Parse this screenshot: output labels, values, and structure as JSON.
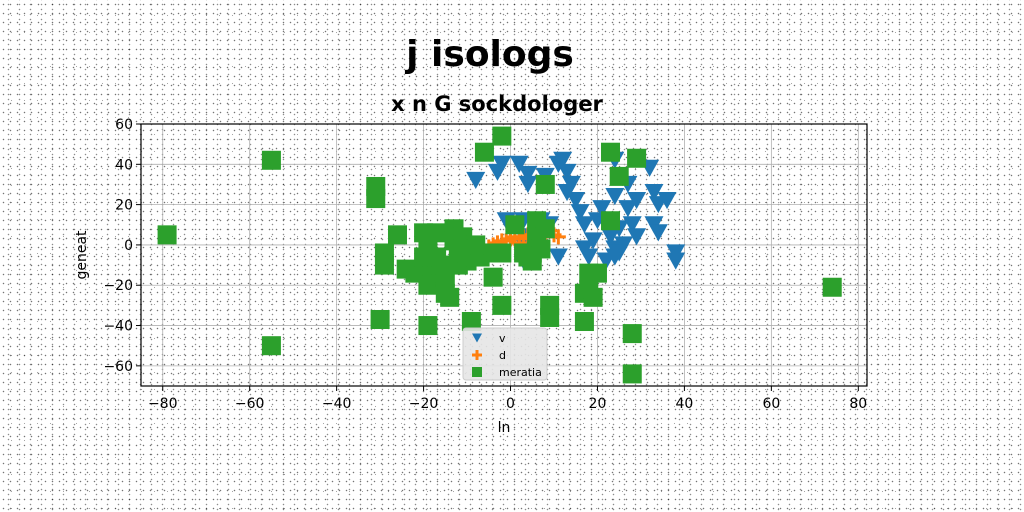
{
  "chart_data": {
    "type": "scatter",
    "title": "j isologs",
    "subtitle": "x n G sockdologer",
    "xlabel": "ln",
    "ylabel": "geneat",
    "xlim": [
      -85,
      82
    ],
    "ylim": [
      -70,
      60
    ],
    "xticks": [
      -80,
      -60,
      -40,
      -20,
      0,
      20,
      40,
      60,
      80
    ],
    "yticks": [
      -60,
      -40,
      -20,
      0,
      20,
      40,
      60
    ],
    "grid": true,
    "legend_position": "bottom-center",
    "series": [
      {
        "name": "v",
        "marker": "triangle-down",
        "color": "#1f77b4",
        "points": [
          [
            -8,
            32
          ],
          [
            -3,
            36
          ],
          [
            -2,
            40
          ],
          [
            2,
            40
          ],
          [
            -1,
            12
          ],
          [
            3,
            12
          ],
          [
            3,
            0
          ],
          [
            3,
            4
          ],
          [
            6,
            -2
          ],
          [
            7,
            12
          ],
          [
            9,
            10
          ],
          [
            11,
            -6
          ],
          [
            3,
            -6
          ],
          [
            3,
            -8
          ],
          [
            11,
            40
          ],
          [
            12,
            42
          ],
          [
            13,
            36
          ],
          [
            14,
            30
          ],
          [
            15,
            22
          ],
          [
            13,
            26
          ],
          [
            16,
            16
          ],
          [
            17,
            10
          ],
          [
            20,
            12
          ],
          [
            21,
            18
          ],
          [
            19,
            2
          ],
          [
            22,
            10
          ],
          [
            23,
            4
          ],
          [
            25,
            8
          ],
          [
            24,
            -2
          ],
          [
            26,
            0
          ],
          [
            25,
            -4
          ],
          [
            17,
            -2
          ],
          [
            18,
            -6
          ],
          [
            22,
            -8
          ],
          [
            24,
            -6
          ],
          [
            28,
            10
          ],
          [
            27,
            18
          ],
          [
            29,
            22
          ],
          [
            24,
            24
          ],
          [
            27,
            30
          ],
          [
            32,
            38
          ],
          [
            33,
            26
          ],
          [
            34,
            20
          ],
          [
            36,
            22
          ],
          [
            33,
            10
          ],
          [
            34,
            6
          ],
          [
            38,
            -4
          ],
          [
            38,
            -8
          ],
          [
            29,
            4
          ],
          [
            24,
            42
          ],
          [
            8,
            34
          ],
          [
            4,
            30
          ],
          [
            4,
            35
          ]
        ]
      },
      {
        "name": "d",
        "marker": "plus",
        "color": "#ff7f0e",
        "points": [
          [
            -6,
            -3
          ],
          [
            -5,
            -1
          ],
          [
            -4,
            0
          ],
          [
            -3,
            1
          ],
          [
            -2,
            2
          ],
          [
            -1,
            2
          ],
          [
            0,
            3
          ],
          [
            1,
            3
          ],
          [
            2,
            4
          ],
          [
            3,
            4
          ],
          [
            4,
            5
          ],
          [
            5,
            5
          ],
          [
            6,
            6
          ],
          [
            7,
            6
          ],
          [
            8,
            7
          ],
          [
            9,
            7
          ],
          [
            10,
            5
          ],
          [
            11,
            4
          ],
          [
            -3,
            -2
          ],
          [
            2,
            1
          ],
          [
            5,
            3
          ],
          [
            8,
            4
          ],
          [
            1,
            4
          ]
        ]
      },
      {
        "name": "meratia",
        "marker": "square",
        "color": "#2ca02c",
        "points": [
          [
            -79,
            5
          ],
          [
            -55,
            42
          ],
          [
            -55,
            -50
          ],
          [
            -31,
            29
          ],
          [
            -31,
            23
          ],
          [
            -30,
            -37
          ],
          [
            -29,
            -4
          ],
          [
            -29,
            -10
          ],
          [
            -26,
            5
          ],
          [
            -24,
            -12
          ],
          [
            -22,
            -14
          ],
          [
            -20,
            -6
          ],
          [
            -20,
            6
          ],
          [
            -19,
            -2
          ],
          [
            -19,
            -20
          ],
          [
            -19,
            -40
          ],
          [
            -18,
            -14
          ],
          [
            -17,
            -6
          ],
          [
            -17,
            6
          ],
          [
            -16,
            -10
          ],
          [
            -15,
            -16
          ],
          [
            -15,
            -24
          ],
          [
            -14,
            -26
          ],
          [
            -13,
            8
          ],
          [
            -13,
            2
          ],
          [
            -12,
            -10
          ],
          [
            -11,
            4
          ],
          [
            -11,
            -4
          ],
          [
            -10,
            -8
          ],
          [
            -9,
            -38
          ],
          [
            -8,
            -6
          ],
          [
            -7,
            -6
          ],
          [
            -6,
            46
          ],
          [
            -4,
            -16
          ],
          [
            -4,
            -4
          ],
          [
            -2,
            -4
          ],
          [
            -2,
            -30
          ],
          [
            -2,
            54
          ],
          [
            1,
            10
          ],
          [
            3,
            -4
          ],
          [
            4,
            -6
          ],
          [
            5,
            -8
          ],
          [
            5,
            -4
          ],
          [
            6,
            12
          ],
          [
            6,
            4
          ],
          [
            7,
            -2
          ],
          [
            8,
            8
          ],
          [
            8,
            30
          ],
          [
            9,
            -30
          ],
          [
            9,
            -36
          ],
          [
            17,
            -24
          ],
          [
            17,
            -38
          ],
          [
            18,
            -14
          ],
          [
            18,
            -22
          ],
          [
            19,
            -26
          ],
          [
            20,
            -14
          ],
          [
            23,
            46
          ],
          [
            23,
            12
          ],
          [
            25,
            34
          ],
          [
            28,
            -44
          ],
          [
            28,
            -64
          ],
          [
            29,
            43
          ],
          [
            74,
            -21
          ],
          [
            -8,
            0
          ],
          [
            -12,
            -2
          ]
        ]
      }
    ]
  }
}
